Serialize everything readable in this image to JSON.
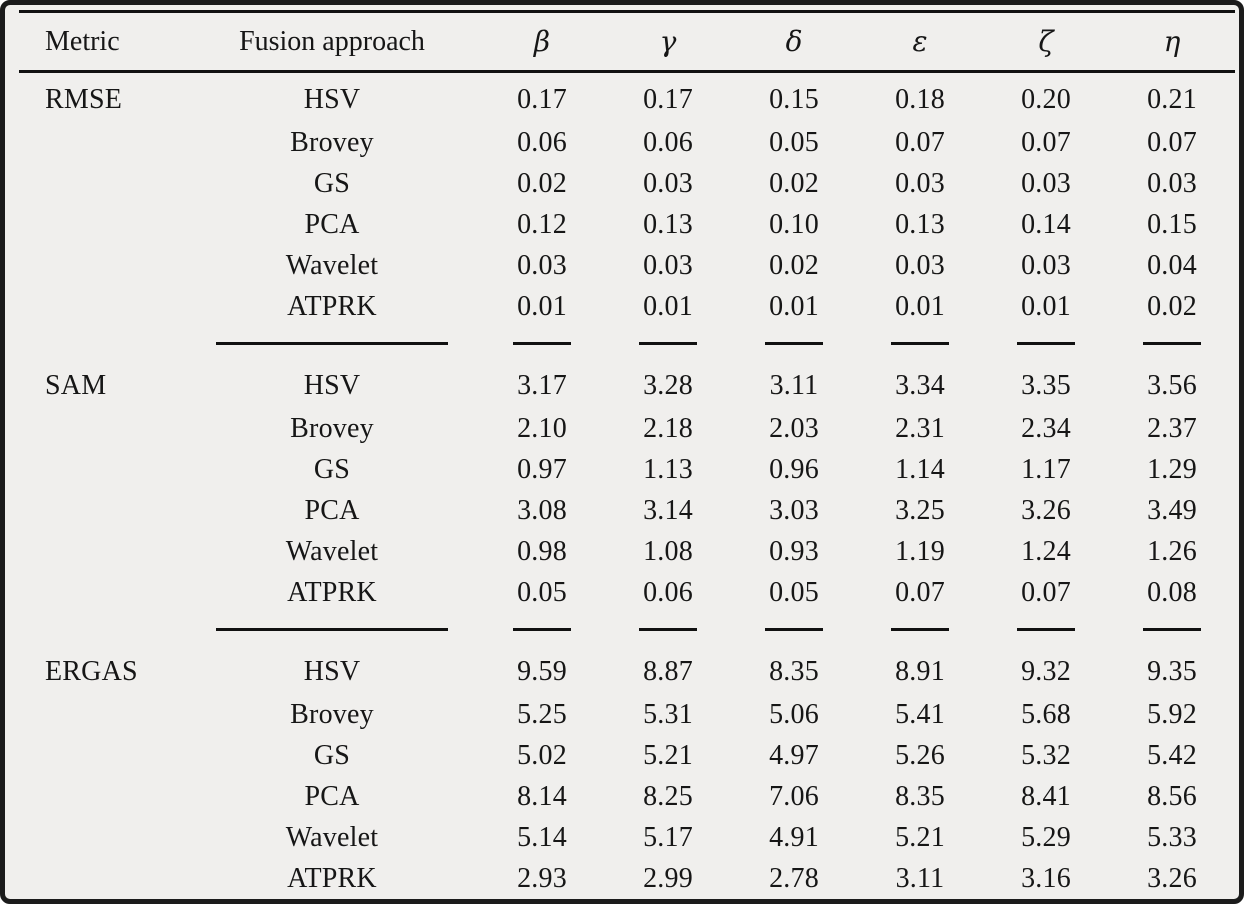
{
  "colors": {
    "frame_border": "#1b1b1b",
    "page_background": "#f0efed",
    "rule": "#111111",
    "text": "#161616"
  },
  "chart_data": {
    "type": "table",
    "title": "",
    "columns": [
      "Metric",
      "Fusion approach",
      "β",
      "γ",
      "δ",
      "ε",
      "ζ",
      "η"
    ],
    "sections": [
      {
        "metric": "RMSE",
        "rows": [
          {
            "approach": "HSV",
            "values": [
              "0.17",
              "0.17",
              "0.15",
              "0.18",
              "0.20",
              "0.21"
            ]
          },
          {
            "approach": "Brovey",
            "values": [
              "0.06",
              "0.06",
              "0.05",
              "0.07",
              "0.07",
              "0.07"
            ]
          },
          {
            "approach": "GS",
            "values": [
              "0.02",
              "0.03",
              "0.02",
              "0.03",
              "0.03",
              "0.03"
            ]
          },
          {
            "approach": "PCA",
            "values": [
              "0.12",
              "0.13",
              "0.10",
              "0.13",
              "0.14",
              "0.15"
            ]
          },
          {
            "approach": "Wavelet",
            "values": [
              "0.03",
              "0.03",
              "0.02",
              "0.03",
              "0.03",
              "0.04"
            ]
          },
          {
            "approach": "ATPRK",
            "values": [
              "0.01",
              "0.01",
              "0.01",
              "0.01",
              "0.01",
              "0.02"
            ]
          }
        ]
      },
      {
        "metric": "SAM",
        "rows": [
          {
            "approach": "HSV",
            "values": [
              "3.17",
              "3.28",
              "3.11",
              "3.34",
              "3.35",
              "3.56"
            ]
          },
          {
            "approach": "Brovey",
            "values": [
              "2.10",
              "2.18",
              "2.03",
              "2.31",
              "2.34",
              "2.37"
            ]
          },
          {
            "approach": "GS",
            "values": [
              "0.97",
              "1.13",
              "0.96",
              "1.14",
              "1.17",
              "1.29"
            ]
          },
          {
            "approach": "PCA",
            "values": [
              "3.08",
              "3.14",
              "3.03",
              "3.25",
              "3.26",
              "3.49"
            ]
          },
          {
            "approach": "Wavelet",
            "values": [
              "0.98",
              "1.08",
              "0.93",
              "1.19",
              "1.24",
              "1.26"
            ]
          },
          {
            "approach": "ATPRK",
            "values": [
              "0.05",
              "0.06",
              "0.05",
              "0.07",
              "0.07",
              "0.08"
            ]
          }
        ]
      },
      {
        "metric": "ERGAS",
        "rows": [
          {
            "approach": "HSV",
            "values": [
              "9.59",
              "8.87",
              "8.35",
              "8.91",
              "9.32",
              "9.35"
            ]
          },
          {
            "approach": "Brovey",
            "values": [
              "5.25",
              "5.31",
              "5.06",
              "5.41",
              "5.68",
              "5.92"
            ]
          },
          {
            "approach": "GS",
            "values": [
              "5.02",
              "5.21",
              "4.97",
              "5.26",
              "5.32",
              "5.42"
            ]
          },
          {
            "approach": "PCA",
            "values": [
              "8.14",
              "8.25",
              "7.06",
              "8.35",
              "8.41",
              "8.56"
            ]
          },
          {
            "approach": "Wavelet",
            "values": [
              "5.14",
              "5.17",
              "4.91",
              "5.21",
              "5.29",
              "5.33"
            ]
          },
          {
            "approach": "ATPRK",
            "values": [
              "2.93",
              "2.99",
              "2.78",
              "3.11",
              "3.16",
              "3.26"
            ]
          }
        ]
      }
    ]
  },
  "table": {
    "headers": {
      "metric": "Metric",
      "fusion": "Fusion approach",
      "columns": [
        "β",
        "γ",
        "δ",
        "ε",
        "ζ",
        "η"
      ]
    }
  }
}
